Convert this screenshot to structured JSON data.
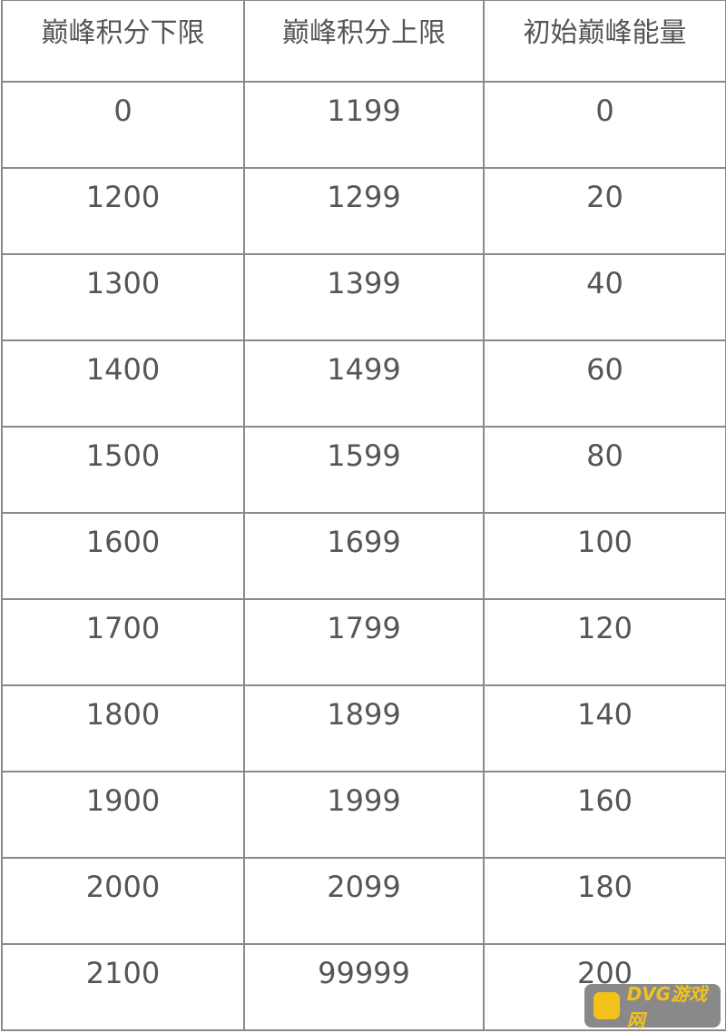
{
  "table": {
    "header": [
      "巅峰积分下限",
      "巅峰积分上限",
      "初始巅峰能量"
    ],
    "rows": [
      [
        "0",
        "1199",
        "0"
      ],
      [
        "1200",
        "1299",
        "20"
      ],
      [
        "1300",
        "1399",
        "40"
      ],
      [
        "1400",
        "1499",
        "60"
      ],
      [
        "1500",
        "1599",
        "80"
      ],
      [
        "1600",
        "1699",
        "100"
      ],
      [
        "1700",
        "1799",
        "120"
      ],
      [
        "1800",
        "1899",
        "140"
      ],
      [
        "1900",
        "1999",
        "160"
      ],
      [
        "2000",
        "2099",
        "180"
      ],
      [
        "2100",
        "99999",
        "200"
      ]
    ]
  },
  "watermark": {
    "text": "DVG游戏网"
  }
}
